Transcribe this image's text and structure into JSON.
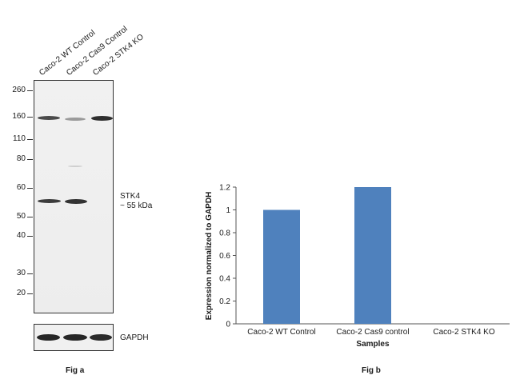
{
  "fig_a": {
    "lanes": [
      "Caco-2 WT Control",
      "Caco-2 Cas9 Control",
      "Caco-2 STK4 KO"
    ],
    "mw_markers": [
      "260",
      "160",
      "110",
      "80",
      "60",
      "50",
      "40",
      "30",
      "20"
    ],
    "target_label": "STK4",
    "target_size": "~ 55 kDa",
    "loading_control": "GAPDH",
    "caption": "Fig a"
  },
  "fig_b": {
    "caption": "Fig b"
  },
  "chart_data": {
    "type": "bar",
    "categories": [
      "Caco-2 WT Control",
      "Caco-2 Cas9 control",
      "Caco-2 STK4 KO"
    ],
    "values": [
      1.0,
      1.2,
      0
    ],
    "ylim": [
      0,
      1.2
    ],
    "yticks": [
      "0",
      "0.2",
      "0.4",
      "0.6",
      "0.8",
      "1",
      "1.2"
    ],
    "xlabel": "Samples",
    "ylabel": "Expression  normalized to GAPDH",
    "bar_color": "#4f81bd"
  }
}
